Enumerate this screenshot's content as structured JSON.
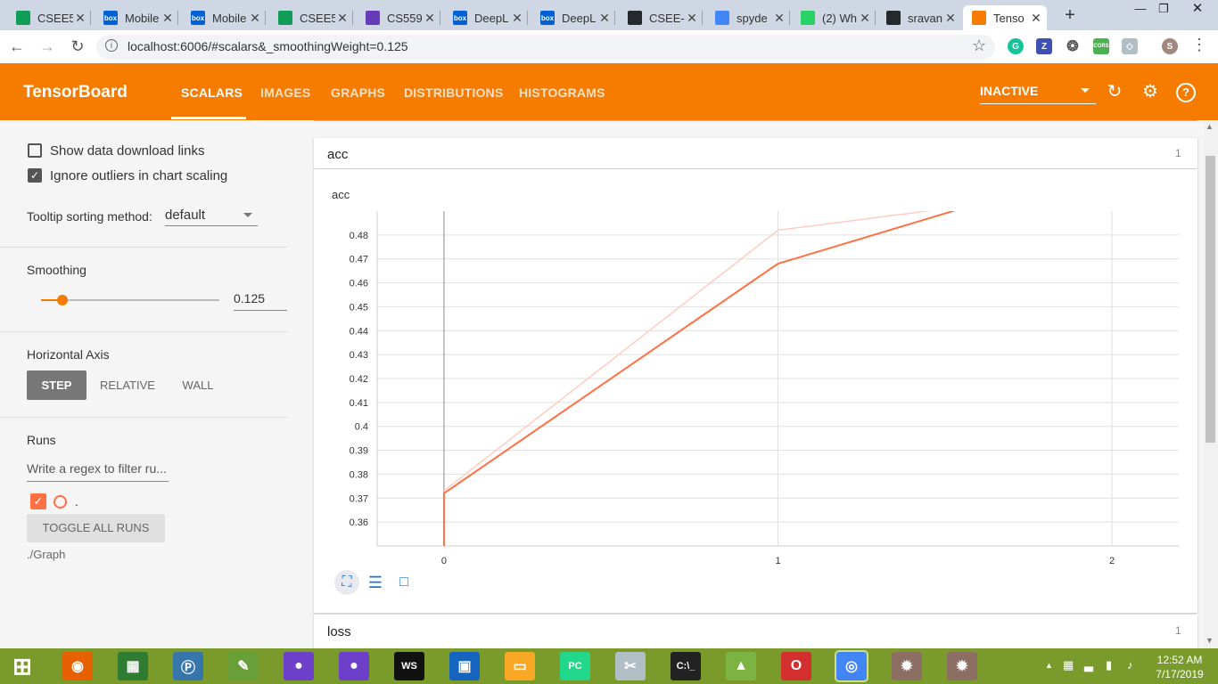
{
  "browser": {
    "tabs": [
      {
        "title": "CSEE5",
        "icon": "sheets-icon",
        "color": "#0f9d58"
      },
      {
        "title": "Mobile",
        "icon": "box-icon",
        "color": "#0061d5"
      },
      {
        "title": "Mobile",
        "icon": "box-icon",
        "color": "#0061d5"
      },
      {
        "title": "CSEE5",
        "icon": "sheets-icon",
        "color": "#0f9d58"
      },
      {
        "title": "CS559",
        "icon": "forms-icon",
        "color": "#673ab7"
      },
      {
        "title": "DeepL",
        "icon": "box-icon",
        "color": "#0061d5"
      },
      {
        "title": "DeepL",
        "icon": "box-icon",
        "color": "#0061d5"
      },
      {
        "title": "CSEE-",
        "icon": "github-icon",
        "color": "#24292e"
      },
      {
        "title": "spyde",
        "icon": "google-icon",
        "color": "#4285f4"
      },
      {
        "title": "(2) Wh",
        "icon": "whatsapp-icon",
        "color": "#25d366"
      },
      {
        "title": "sravan",
        "icon": "github-icon",
        "color": "#24292e"
      },
      {
        "title": "Tenso",
        "icon": "tensorboard-icon",
        "color": "#f57c00"
      }
    ],
    "url": "localhost:6006/#scalars&_smoothingWeight=0.125",
    "profile_initial": "S",
    "box_icon_text": "box",
    "zotero_text": "Z",
    "cors_text": "CORS"
  },
  "header": {
    "title": "TensorBoard",
    "tabs": [
      "SCALARS",
      "IMAGES",
      "GRAPHS",
      "DISTRIBUTIONS",
      "HISTOGRAMS"
    ],
    "status": "INACTIVE"
  },
  "sidebar": {
    "show_download": "Show data download links",
    "ignore_outliers": "Ignore outliers in chart scaling",
    "tooltip_label": "Tooltip sorting method:",
    "tooltip_value": "default",
    "smoothing_label": "Smoothing",
    "smoothing_value": "0.125",
    "smoothing_fraction": 0.125,
    "axis_label": "Horizontal Axis",
    "axis_options": [
      "STEP",
      "RELATIVE",
      "WALL"
    ],
    "runs_label": "Runs",
    "regex_placeholder": "Write a regex to filter ru...",
    "run_name": ".",
    "toggle_all": "TOGGLE ALL RUNS",
    "graph_label": "./Graph"
  },
  "main": {
    "card_acc_title": "acc",
    "card_acc_count": "1",
    "card_loss_title": "loss",
    "card_loss_count": "1",
    "series_color": "#ff7043"
  },
  "chart_data": {
    "type": "line",
    "title": "acc",
    "xlabel": "",
    "ylabel": "",
    "xlim": [
      -0.2,
      2.2
    ],
    "ylim": [
      0.35,
      0.49
    ],
    "x_ticks": [
      0,
      1,
      2
    ],
    "y_ticks": [
      0.36,
      0.37,
      0.38,
      0.39,
      0.4,
      0.41,
      0.42,
      0.43,
      0.44,
      0.45,
      0.46,
      0.47,
      0.48
    ],
    "series": [
      {
        "name": "raw",
        "x": [
          0,
          1,
          2
        ],
        "y": [
          0.373,
          0.482,
          0.5
        ]
      },
      {
        "name": "smoothed",
        "x": [
          0,
          0,
          1,
          2
        ],
        "y": [
          0.35,
          0.372,
          0.468,
          0.51
        ]
      }
    ]
  },
  "taskbar": {
    "apps": [
      "start",
      "firefox",
      "store",
      "python",
      "notepad",
      "github-desktop",
      "github-desktop",
      "webstorm",
      "jetbrains",
      "explorer",
      "pycharm",
      "snipping",
      "cmd",
      "android-studio",
      "opera",
      "chrome",
      "spider",
      "spider"
    ],
    "labels": {
      "webstorm": "WS",
      "pycharm": "PC",
      "cmd": "C:\\_"
    },
    "time": "12:52 AM",
    "date": "7/17/2019"
  }
}
